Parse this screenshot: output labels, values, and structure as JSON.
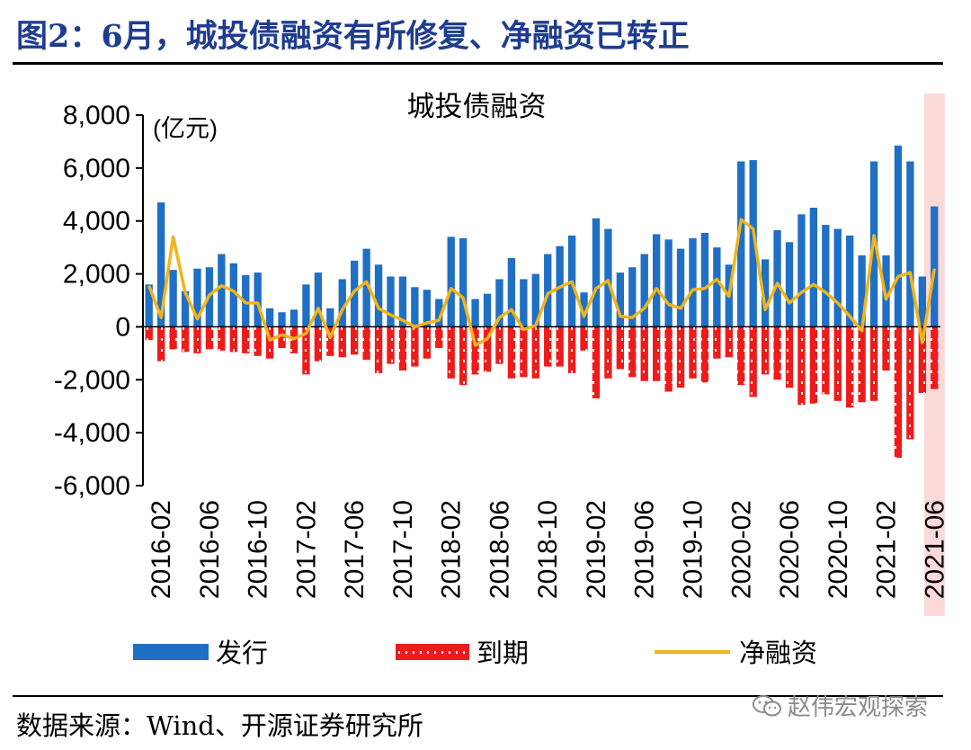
{
  "figure": {
    "title": "图2：6月，城投债融资有所修复、净融资已转正",
    "source": "数据来源：Wind、开源证券研究所",
    "watermark": "赵伟宏观探索"
  },
  "chart_data": {
    "type": "bar",
    "title": "城投债融资",
    "unit_label": "(亿元)",
    "ylim": [
      -6000,
      8000
    ],
    "yticks": [
      -6000,
      -4000,
      -2000,
      0,
      2000,
      4000,
      6000,
      8000
    ],
    "ytick_labels": [
      "-6,000",
      "-4,000",
      "-2,000",
      "0",
      "2,000",
      "4,000",
      "6,000",
      "8,000"
    ],
    "xtick_labels": [
      "2016-02",
      "2016-06",
      "2016-10",
      "2017-02",
      "2017-06",
      "2017-10",
      "2018-02",
      "2018-06",
      "2018-10",
      "2019-02",
      "2019-06",
      "2019-10",
      "2020-02",
      "2020-06",
      "2020-10",
      "2021-02",
      "2021-06"
    ],
    "categories": [
      "2016-01",
      "2016-02",
      "2016-03",
      "2016-04",
      "2016-05",
      "2016-06",
      "2016-07",
      "2016-08",
      "2016-09",
      "2016-10",
      "2016-11",
      "2016-12",
      "2017-01",
      "2017-02",
      "2017-03",
      "2017-04",
      "2017-05",
      "2017-06",
      "2017-07",
      "2017-08",
      "2017-09",
      "2017-10",
      "2017-11",
      "2017-12",
      "2018-01",
      "2018-02",
      "2018-03",
      "2018-04",
      "2018-05",
      "2018-06",
      "2018-07",
      "2018-08",
      "2018-09",
      "2018-10",
      "2018-11",
      "2018-12",
      "2019-01",
      "2019-02",
      "2019-03",
      "2019-04",
      "2019-05",
      "2019-06",
      "2019-07",
      "2019-08",
      "2019-09",
      "2019-10",
      "2019-11",
      "2019-12",
      "2020-01",
      "2020-02",
      "2020-03",
      "2020-04",
      "2020-05",
      "2020-06",
      "2020-07",
      "2020-08",
      "2020-09",
      "2020-10",
      "2020-11",
      "2020-12",
      "2021-01",
      "2021-02",
      "2021-03",
      "2021-04",
      "2021-05",
      "2021-06"
    ],
    "series": [
      {
        "name": "发行",
        "type": "bar",
        "color": "#1f6fc5",
        "values": [
          1600,
          4700,
          2150,
          1350,
          2200,
          2250,
          2750,
          2400,
          1950,
          2050,
          700,
          550,
          650,
          1600,
          2050,
          700,
          1800,
          2500,
          2950,
          2350,
          1900,
          1900,
          1500,
          1400,
          1050,
          3400,
          3350,
          1050,
          1250,
          1800,
          2600,
          1800,
          2000,
          2750,
          3050,
          3450,
          1300,
          4100,
          3700,
          2050,
          2250,
          2750,
          3500,
          3300,
          2950,
          3350,
          3550,
          3000,
          2350,
          6250,
          6300,
          2550,
          3650,
          3200,
          4250,
          4500,
          3850,
          3700,
          3450,
          2700,
          6250,
          2700,
          6850,
          6250,
          1900,
          4550
        ]
      },
      {
        "name": "到期",
        "type": "bar",
        "color": "#ee1b1b",
        "values": [
          -500,
          -1300,
          -850,
          -950,
          -1000,
          -850,
          -900,
          -950,
          -1000,
          -1100,
          -1200,
          -800,
          -1000,
          -1800,
          -1300,
          -1100,
          -1150,
          -1050,
          -1250,
          -1750,
          -1400,
          -1650,
          -1500,
          -1200,
          -800,
          -1950,
          -2200,
          -1800,
          -1700,
          -1400,
          -1950,
          -1900,
          -1950,
          -1500,
          -1500,
          -1750,
          -900,
          -2700,
          -1950,
          -1600,
          -1900,
          -2050,
          -2050,
          -2450,
          -2300,
          -1950,
          -2100,
          -1200,
          -1150,
          -2200,
          -2650,
          -1800,
          -2000,
          -2300,
          -2950,
          -2900,
          -2550,
          -2800,
          -3050,
          -2850,
          -2800,
          -1650,
          -4950,
          -4250,
          -2500,
          -2350
        ]
      },
      {
        "name": "净融资",
        "type": "line",
        "color": "#f0b41c",
        "values": [
          1550,
          350,
          3400,
          1300,
          300,
          1200,
          1550,
          1350,
          900,
          900,
          -500,
          -300,
          -450,
          -250,
          700,
          -400,
          650,
          1350,
          1700,
          700,
          450,
          250,
          0,
          150,
          250,
          1450,
          1100,
          -700,
          -450,
          350,
          650,
          -100,
          50,
          1250,
          1500,
          1700,
          400,
          1450,
          1750,
          400,
          350,
          700,
          1450,
          850,
          700,
          1400,
          1450,
          1800,
          1150,
          4050,
          3700,
          650,
          1650,
          900,
          1300,
          1600,
          1300,
          900,
          400,
          -150,
          3450,
          1050,
          1900,
          2050,
          -600,
          2200
        ]
      }
    ],
    "highlight_category": "2021-06",
    "highlight_color": "#fcd9d9",
    "legend_position": "bottom",
    "grid": false
  }
}
